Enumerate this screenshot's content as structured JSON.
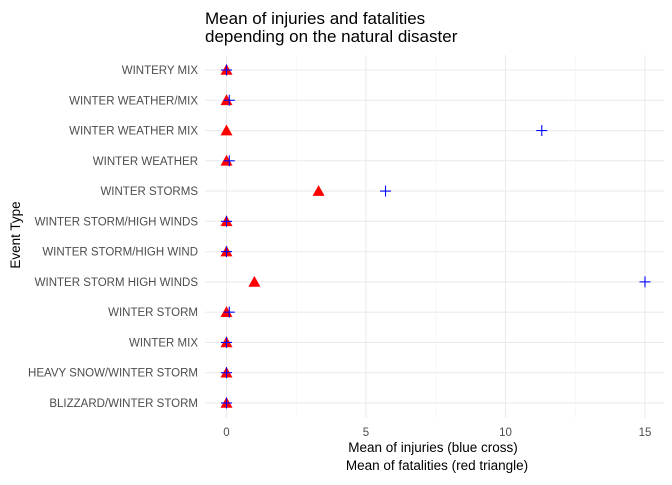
{
  "chart_data": {
    "type": "scatter",
    "title_line1": "Mean of injuries and fatalities",
    "title_line2": "depending on the natural disaster",
    "xlabel_line1": "Mean of injuries (blue cross)",
    "xlabel_line2": "Mean of fatalities (red triangle)",
    "ylabel": "Event Type",
    "xlim": [
      -0.5,
      15.5
    ],
    "x_ticks": [
      0,
      5,
      10,
      15
    ],
    "grid": true,
    "categories": [
      "BLIZZARD/WINTER STORM",
      "HEAVY SNOW/WINTER STORM",
      "WINTER MIX",
      "WINTER STORM",
      "WINTER STORM HIGH WINDS",
      "WINTER STORM/HIGH WIND",
      "WINTER STORM/HIGH WINDS",
      "WINTER STORMS",
      "WINTER WEATHER",
      "WINTER WEATHER MIX",
      "WINTER WEATHER/MIX",
      "WINTERY MIX"
    ],
    "series": [
      {
        "marker": "cross",
        "color": "#0000ff",
        "values": [
          0.0,
          0.0,
          0.0,
          0.1,
          15.0,
          0.0,
          0.0,
          5.7,
          0.1,
          11.3,
          0.1,
          0.0
        ]
      },
      {
        "marker": "triangle",
        "color": "#ff0000",
        "values": [
          0.0,
          0.0,
          0.0,
          0.0,
          1.0,
          0.0,
          0.0,
          3.3,
          0.0,
          0.0,
          0.0,
          0.0
        ]
      }
    ]
  }
}
